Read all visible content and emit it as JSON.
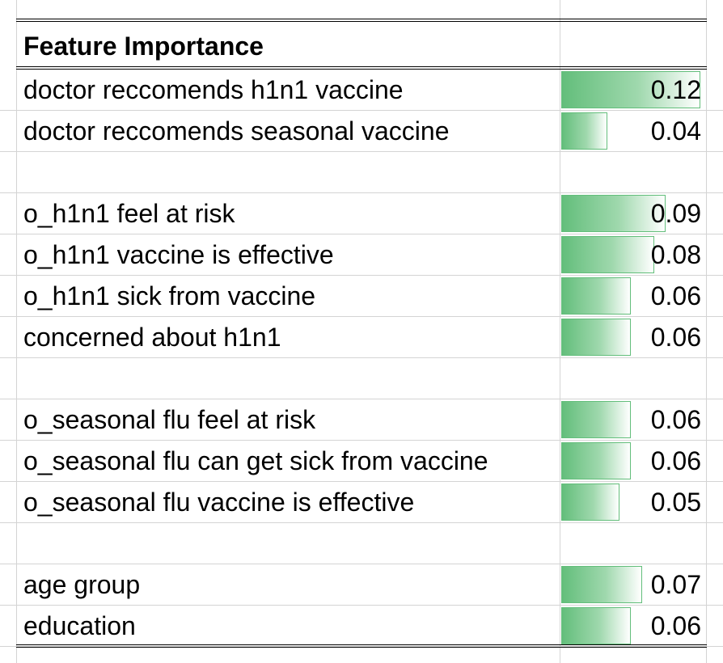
{
  "sheet": {
    "header": "Feature Importance",
    "max_value": 0.12,
    "rows": [
      {
        "label": "doctor reccomends h1n1 vaccine",
        "value": "0.12",
        "num": 0.12
      },
      {
        "label": "doctor reccomends seasonal vaccine",
        "value": "0.04",
        "num": 0.04
      },
      {
        "label": "",
        "value": "",
        "num": null
      },
      {
        "label": "o_h1n1 feel at risk",
        "value": "0.09",
        "num": 0.09
      },
      {
        "label": "o_h1n1 vaccine is effective",
        "value": "0.08",
        "num": 0.08
      },
      {
        "label": "o_h1n1 sick from vaccine",
        "value": "0.06",
        "num": 0.06
      },
      {
        "label": "concerned about h1n1",
        "value": "0.06",
        "num": 0.06
      },
      {
        "label": "",
        "value": "",
        "num": null
      },
      {
        "label": "o_seasonal flu feel at risk",
        "value": "0.06",
        "num": 0.06
      },
      {
        "label": "o_seasonal flu can get sick from vaccine",
        "value": "0.06",
        "num": 0.06
      },
      {
        "label": "o_seasonal flu vaccine is effective",
        "value": "0.05",
        "num": 0.05
      },
      {
        "label": "",
        "value": "",
        "num": null
      },
      {
        "label": "age group",
        "value": "0.07",
        "num": 0.07
      },
      {
        "label": "education",
        "value": "0.06",
        "num": 0.06
      }
    ],
    "colors": {
      "bar": "#63be7b",
      "gridline": "#d4d4d4"
    }
  }
}
